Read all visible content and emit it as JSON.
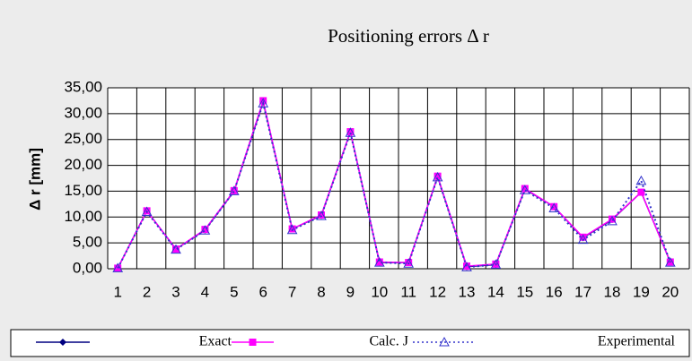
{
  "chart_data": {
    "type": "line",
    "title": "Positioning errors Δ r",
    "y_label": "Δ r [mm]",
    "categories": [
      "1",
      "2",
      "3",
      "4",
      "5",
      "6",
      "7",
      "8",
      "9",
      "10",
      "11",
      "12",
      "13",
      "14",
      "15",
      "16",
      "17",
      "18",
      "19",
      "20"
    ],
    "series": [
      {
        "name": "Exact",
        "color": "#000080",
        "marker": "diamond",
        "dash": "solid",
        "values": [
          0.1,
          11.2,
          3.8,
          7.5,
          15.0,
          32.3,
          7.7,
          10.3,
          26.5,
          1.2,
          1.2,
          17.8,
          0.4,
          0.8,
          15.4,
          12.0,
          6.0,
          9.5,
          14.8,
          1.3
        ]
      },
      {
        "name": "Calc. J",
        "color": "#ff00ff",
        "marker": "square",
        "dash": "solid",
        "values": [
          0.1,
          11.2,
          3.8,
          7.6,
          15.1,
          32.5,
          7.7,
          10.4,
          26.5,
          1.3,
          1.2,
          17.9,
          0.5,
          0.9,
          15.5,
          12.0,
          6.1,
          9.6,
          14.8,
          1.3
        ]
      },
      {
        "name": "Experimental",
        "color": "#3333cc",
        "marker": "triangle",
        "dash": "dotted",
        "values": [
          0.1,
          11.0,
          3.7,
          7.4,
          15.0,
          32.0,
          7.5,
          10.2,
          26.3,
          1.2,
          1.0,
          17.7,
          0.3,
          0.8,
          15.2,
          11.7,
          5.6,
          9.2,
          17.0,
          1.2
        ]
      }
    ],
    "ylim": [
      0,
      35
    ],
    "yticks": [
      {
        "value": 0,
        "label": "0,00"
      },
      {
        "value": 5,
        "label": "5,00"
      },
      {
        "value": 10,
        "label": "10,00"
      },
      {
        "value": 15,
        "label": "15,00"
      },
      {
        "value": 20,
        "label": "20,00"
      },
      {
        "value": 25,
        "label": "25,00"
      },
      {
        "value": 30,
        "label": "30,00"
      },
      {
        "value": 35,
        "label": "35,00"
      }
    ],
    "grid": true,
    "legend": "bottom"
  }
}
